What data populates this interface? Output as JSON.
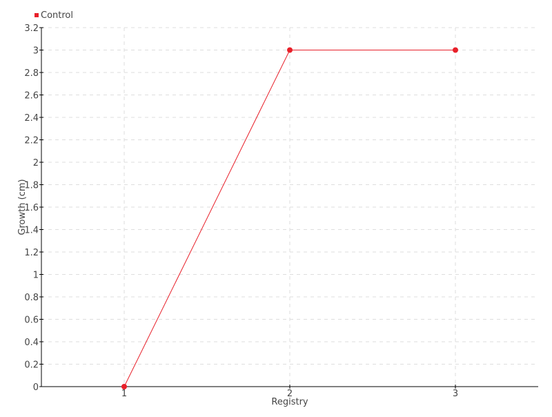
{
  "chart_data": {
    "type": "line",
    "title": "",
    "xlabel": "Registry",
    "ylabel": "Growth (cm)",
    "categories": [
      "1",
      "2",
      "3"
    ],
    "series": [
      {
        "name": "Control",
        "values": [
          0,
          3,
          3
        ],
        "color": "#e8202a"
      }
    ],
    "ylim": [
      0,
      3.2
    ],
    "yticks": [
      0,
      0.2,
      0.4,
      0.6,
      0.8,
      1,
      1.2,
      1.4,
      1.6,
      1.8,
      2,
      2.2,
      2.4,
      2.6,
      2.8,
      3,
      3.2
    ],
    "grid": true,
    "legend_position": "top-left"
  }
}
